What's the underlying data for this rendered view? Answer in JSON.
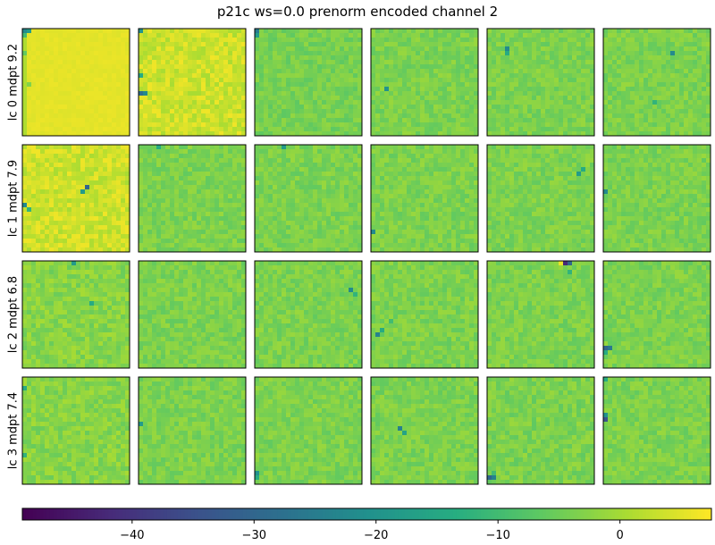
{
  "chart_data": {
    "type": "heatmap",
    "title": "p21c ws=0.0 prenorm encoded channel 2",
    "rows": [
      {
        "label": "lc 0 mdpt 9.2"
      },
      {
        "label": "lc 1 mdpt 7.9"
      },
      {
        "label": "lc 2 mdpt 6.8"
      },
      {
        "label": "lc 3 mdpt 7.4"
      }
    ],
    "columns_per_row": 6,
    "pixels_per_side": 24,
    "colormap": "viridis",
    "colorbar": {
      "orientation": "horizontal",
      "placement": "bottom",
      "range": [
        -49,
        7.5
      ],
      "ticks": [
        -40,
        -30,
        -20,
        -10,
        0
      ],
      "tick_labels": [
        "−40",
        "−30",
        "−20",
        "−10",
        "0"
      ]
    },
    "panels": [
      {
        "row": 0,
        "col": 0,
        "base": 5.5,
        "noise": 0.6,
        "spots": [
          {
            "x": 0,
            "y": 0,
            "v": -22
          },
          {
            "x": 1,
            "y": 0,
            "v": -18
          },
          {
            "x": 0,
            "y": 1,
            "v": -10
          },
          {
            "x": 0,
            "y": 5,
            "v": -6
          },
          {
            "x": 1,
            "y": 12,
            "v": -3
          }
        ],
        "leftcol": 1.0
      },
      {
        "row": 0,
        "col": 1,
        "base": 3.5,
        "noise": 3.0,
        "spots": [
          {
            "x": 0,
            "y": 14,
            "v": -28
          },
          {
            "x": 1,
            "y": 14,
            "v": -22
          },
          {
            "x": 0,
            "y": 0,
            "v": -20
          },
          {
            "x": 0,
            "y": 10,
            "v": -14
          }
        ]
      },
      {
        "row": 0,
        "col": 2,
        "base": -4,
        "noise": 2.5,
        "spots": [
          {
            "x": 0,
            "y": 0,
            "v": -25
          },
          {
            "x": 0,
            "y": 1,
            "v": -18
          }
        ]
      },
      {
        "row": 0,
        "col": 3,
        "base": -3.5,
        "noise": 2.6,
        "spots": [
          {
            "x": 3,
            "y": 13,
            "v": -20
          }
        ]
      },
      {
        "row": 0,
        "col": 4,
        "base": -3.5,
        "noise": 2.6,
        "spots": [
          {
            "x": 4,
            "y": 4,
            "v": -22
          },
          {
            "x": 4,
            "y": 5,
            "v": -14
          }
        ]
      },
      {
        "row": 0,
        "col": 5,
        "base": -3.5,
        "noise": 2.6,
        "spots": [
          {
            "x": 15,
            "y": 5,
            "v": -22
          },
          {
            "x": 11,
            "y": 16,
            "v": -12
          }
        ]
      },
      {
        "row": 1,
        "col": 0,
        "base": 3.5,
        "noise": 3.0,
        "spots": [
          {
            "x": 14,
            "y": 9,
            "v": -30
          },
          {
            "x": 13,
            "y": 10,
            "v": -18
          },
          {
            "x": 0,
            "y": 13,
            "v": -22
          },
          {
            "x": 1,
            "y": 14,
            "v": -12
          }
        ]
      },
      {
        "row": 1,
        "col": 1,
        "base": -3.5,
        "noise": 2.6,
        "spots": [
          {
            "x": 4,
            "y": 0,
            "v": -14
          }
        ]
      },
      {
        "row": 1,
        "col": 2,
        "base": -3.5,
        "noise": 2.6,
        "spots": [
          {
            "x": 6,
            "y": 0,
            "v": -18
          }
        ]
      },
      {
        "row": 1,
        "col": 3,
        "base": -3.5,
        "noise": 2.6,
        "spots": [
          {
            "x": 0,
            "y": 19,
            "v": -22
          }
        ]
      },
      {
        "row": 1,
        "col": 4,
        "base": -3.5,
        "noise": 2.6,
        "spots": [
          {
            "x": 20,
            "y": 6,
            "v": -18
          },
          {
            "x": 21,
            "y": 5,
            "v": -14
          }
        ]
      },
      {
        "row": 1,
        "col": 5,
        "base": -3.5,
        "noise": 2.6,
        "spots": [
          {
            "x": 0,
            "y": 10,
            "v": -22
          }
        ]
      },
      {
        "row": 2,
        "col": 0,
        "base": -2.5,
        "noise": 3.0,
        "spots": [
          {
            "x": 11,
            "y": 0,
            "v": -18
          },
          {
            "x": 15,
            "y": 9,
            "v": -14
          }
        ]
      },
      {
        "row": 2,
        "col": 1,
        "base": -3.5,
        "noise": 2.6,
        "spots": []
      },
      {
        "row": 2,
        "col": 2,
        "base": -3.5,
        "noise": 2.6,
        "spots": [
          {
            "x": 21,
            "y": 6,
            "v": -22
          },
          {
            "x": 22,
            "y": 7,
            "v": -12
          }
        ]
      },
      {
        "row": 2,
        "col": 3,
        "base": -3.5,
        "noise": 2.6,
        "spots": [
          {
            "x": 1,
            "y": 16,
            "v": -24
          },
          {
            "x": 2,
            "y": 15,
            "v": -14
          },
          {
            "x": 4,
            "y": 13,
            "v": -10
          }
        ]
      },
      {
        "row": 2,
        "col": 4,
        "base": -3.5,
        "noise": 2.6,
        "spots": [
          {
            "x": 17,
            "y": 0,
            "v": -42
          },
          {
            "x": 18,
            "y": 0,
            "v": -30
          },
          {
            "x": 16,
            "y": 0,
            "v": 6
          },
          {
            "x": 18,
            "y": 2,
            "v": -12
          }
        ]
      },
      {
        "row": 2,
        "col": 5,
        "base": -3.5,
        "noise": 2.6,
        "spots": [
          {
            "x": 0,
            "y": 19,
            "v": -30
          },
          {
            "x": 1,
            "y": 19,
            "v": -26
          },
          {
            "x": 0,
            "y": 20,
            "v": -14
          }
        ]
      },
      {
        "row": 3,
        "col": 0,
        "base": -2.5,
        "noise": 3.0,
        "spots": [
          {
            "x": 0,
            "y": 2,
            "v": -14
          },
          {
            "x": 0,
            "y": 17,
            "v": -12
          }
        ]
      },
      {
        "row": 3,
        "col": 1,
        "base": -3.5,
        "noise": 2.6,
        "spots": [
          {
            "x": 0,
            "y": 10,
            "v": -18
          }
        ]
      },
      {
        "row": 3,
        "col": 2,
        "base": -3.5,
        "noise": 2.6,
        "spots": [
          {
            "x": 0,
            "y": 21,
            "v": -20
          },
          {
            "x": 0,
            "y": 22,
            "v": -14
          }
        ]
      },
      {
        "row": 3,
        "col": 3,
        "base": -3.5,
        "noise": 2.6,
        "spots": [
          {
            "x": 6,
            "y": 11,
            "v": -24
          },
          {
            "x": 7,
            "y": 12,
            "v": -16
          }
        ]
      },
      {
        "row": 3,
        "col": 4,
        "base": -3.5,
        "noise": 2.8,
        "spots": [
          {
            "x": 0,
            "y": 22,
            "v": -30
          },
          {
            "x": 1,
            "y": 22,
            "v": -24
          },
          {
            "x": 1,
            "y": 21,
            "v": -10
          }
        ]
      },
      {
        "row": 3,
        "col": 5,
        "base": -3.5,
        "noise": 2.6,
        "spots": [
          {
            "x": 0,
            "y": 9,
            "v": -34
          },
          {
            "x": 0,
            "y": 8,
            "v": -20
          },
          {
            "x": 0,
            "y": 0,
            "v": -14
          }
        ]
      }
    ]
  }
}
